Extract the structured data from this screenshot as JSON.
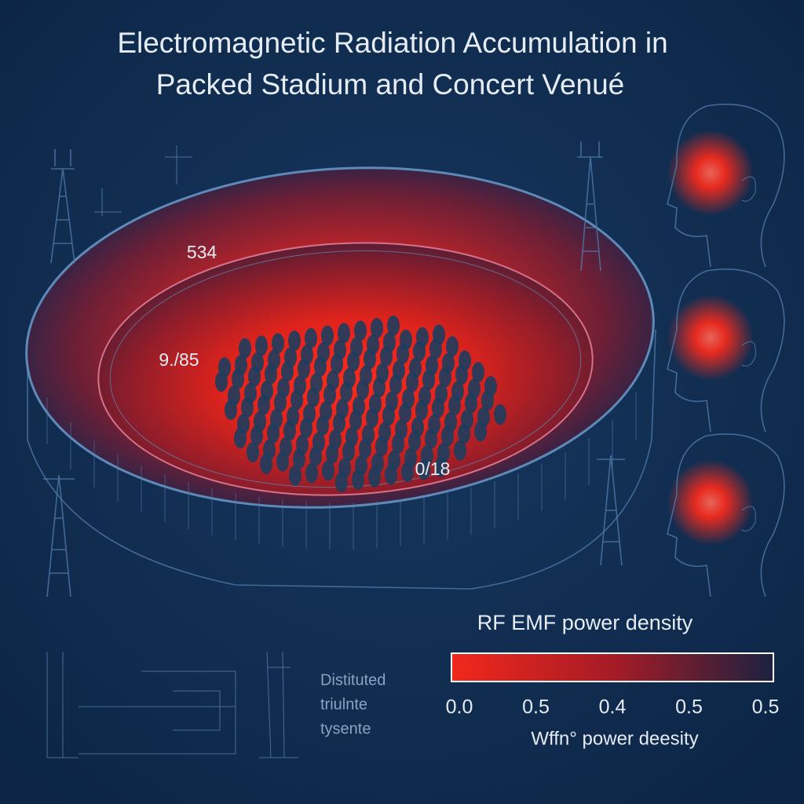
{
  "header": {
    "title_lines": [
      "Electromagnetic Radiation Accumulation in",
      "Packed Stadium and Concert Venué"
    ]
  },
  "stadium_labels": [
    "534",
    "9./85",
    "0/18"
  ],
  "side_note": [
    "Distituted",
    "triulnte",
    "tysente"
  ],
  "legend": {
    "title": "RF EMF power density",
    "ticks": [
      "0.0",
      "0.5",
      "0.4",
      "0.5",
      "0.5"
    ],
    "axis_label": "Wffn° power deesity"
  }
}
